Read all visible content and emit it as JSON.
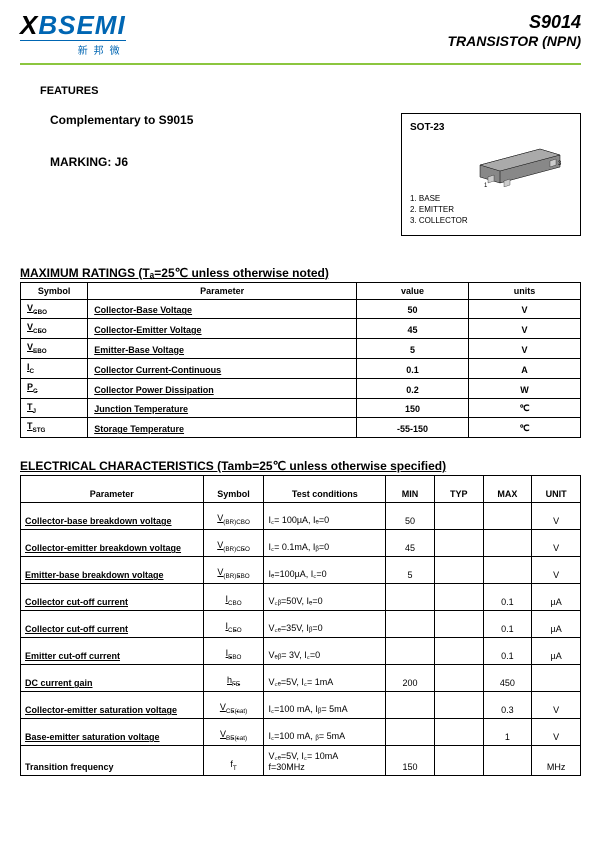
{
  "header": {
    "logo_main": "BSEMI",
    "logo_prefix": "X",
    "logo_sub": "新邦微",
    "title": "S9014",
    "subtitle": "TRANSISTOR  (NPN)"
  },
  "features": {
    "label": "FEATURES",
    "complementary": "Complementary to S9015",
    "marking": "MARKING: J6"
  },
  "package": {
    "label": "SOT-23",
    "pin1": "1.  BASE",
    "pin2": "2.  EMITTER",
    "pin3": "3.  COLLECTOR"
  },
  "max_ratings": {
    "title": "MAXIMUM RATINGS (Tₐ=25℃ unless otherwise noted)",
    "headers": [
      "Symbol",
      "Parameter",
      "value",
      "units"
    ],
    "rows": [
      {
        "sym": "V",
        "sub": "CBO",
        "param": "Collector-Base Voltage",
        "val": "50",
        "unit": "V"
      },
      {
        "sym": "V",
        "sub": "CEO",
        "param": "Collector-Emitter Voltage",
        "val": "45",
        "unit": "V"
      },
      {
        "sym": "V",
        "sub": "EBO",
        "param": "Emitter-Base Voltage",
        "val": "5",
        "unit": "V"
      },
      {
        "sym": "I",
        "sub": "C",
        "param": "Collector Current-Continuous",
        "val": "0.1",
        "unit": "A"
      },
      {
        "sym": "P",
        "sub": "C",
        "param": "Collector Power Dissipation",
        "val": "0.2",
        "unit": "W"
      },
      {
        "sym": "T",
        "sub": "J",
        "param": "Junction Temperature",
        "val": "150",
        "unit": "℃"
      },
      {
        "sym": "T",
        "sub": "STG",
        "param": "Storage Temperature",
        "val": "-55-150",
        "unit": "℃"
      }
    ]
  },
  "elec": {
    "title": "ELECTRICAL CHARACTERISTICS (Tamb=25℃  unless otherwise specified)",
    "headers": [
      "Parameter",
      "Symbol",
      "Test    conditions",
      "MIN",
      "TYP",
      "MAX",
      "UNIT"
    ],
    "rows": [
      {
        "p": "Collector-base breakdown voltage",
        "s": "V",
        "ss": "(BR)CBO",
        "c": "I꜀= 100µA,   Iₑ=0",
        "min": "50",
        "typ": "",
        "max": "",
        "u": "V"
      },
      {
        "p": "Collector-emitter breakdown voltage",
        "s": "V",
        "ss": "(BR)CEO",
        "c": "I꜀= 0.1mA,  Iᵦ=0",
        "min": "45",
        "typ": "",
        "max": "",
        "u": "V"
      },
      {
        "p": "Emitter-base breakdown voltage",
        "s": "V",
        "ss": "(BR)EBO",
        "c": "Iₑ=100µA,   I꜀=0",
        "min": "5",
        "typ": "",
        "max": "",
        "u": "V"
      },
      {
        "p": "Collector cut-off current",
        "s": "I",
        "ss": "CBO",
        "c": "V꜀ᵦ=50V,   Iₑ=0",
        "min": "",
        "typ": "",
        "max": "0.1",
        "u": "µA"
      },
      {
        "p": "Collector cut-off current",
        "s": "I",
        "ss": "CEO",
        "c": "V꜀ₑ=35V,   Iᵦ=0",
        "min": "",
        "typ": "",
        "max": "0.1",
        "u": "µA"
      },
      {
        "p": "Emitter cut-off current",
        "s": "I",
        "ss": "EBO",
        "c": "Vₑᵦ= 3V,   I꜀=0",
        "min": "",
        "typ": "",
        "max": "0.1",
        "u": "µA"
      },
      {
        "p": "DC current gain",
        "s": "h",
        "ss": "FE",
        "c": "V꜀ₑ=5V,   I꜀= 1mA",
        "min": "200",
        "typ": "",
        "max": "450",
        "u": ""
      },
      {
        "p": "Collector-emitter saturation voltage",
        "s": "V",
        "ss": "CE(sat)",
        "c": "I꜀=100 mA,   Iᵦ= 5mA",
        "min": "",
        "typ": "",
        "max": "0.3",
        "u": "V"
      },
      {
        "p": "Base-emitter saturation voltage",
        "s": "V",
        "ss": "BE(sat)",
        "c": "I꜀=100 mA,   ᵦ= 5mA",
        "min": "",
        "typ": "",
        "max": "1",
        "u": "V"
      },
      {
        "p": "Transition frequency",
        "s": "f",
        "ss": "T",
        "c": "V꜀ₑ=5V,   I꜀= 10mA\nf=30MHz",
        "min": "150",
        "typ": "",
        "max": "",
        "u": "MHz"
      }
    ]
  }
}
